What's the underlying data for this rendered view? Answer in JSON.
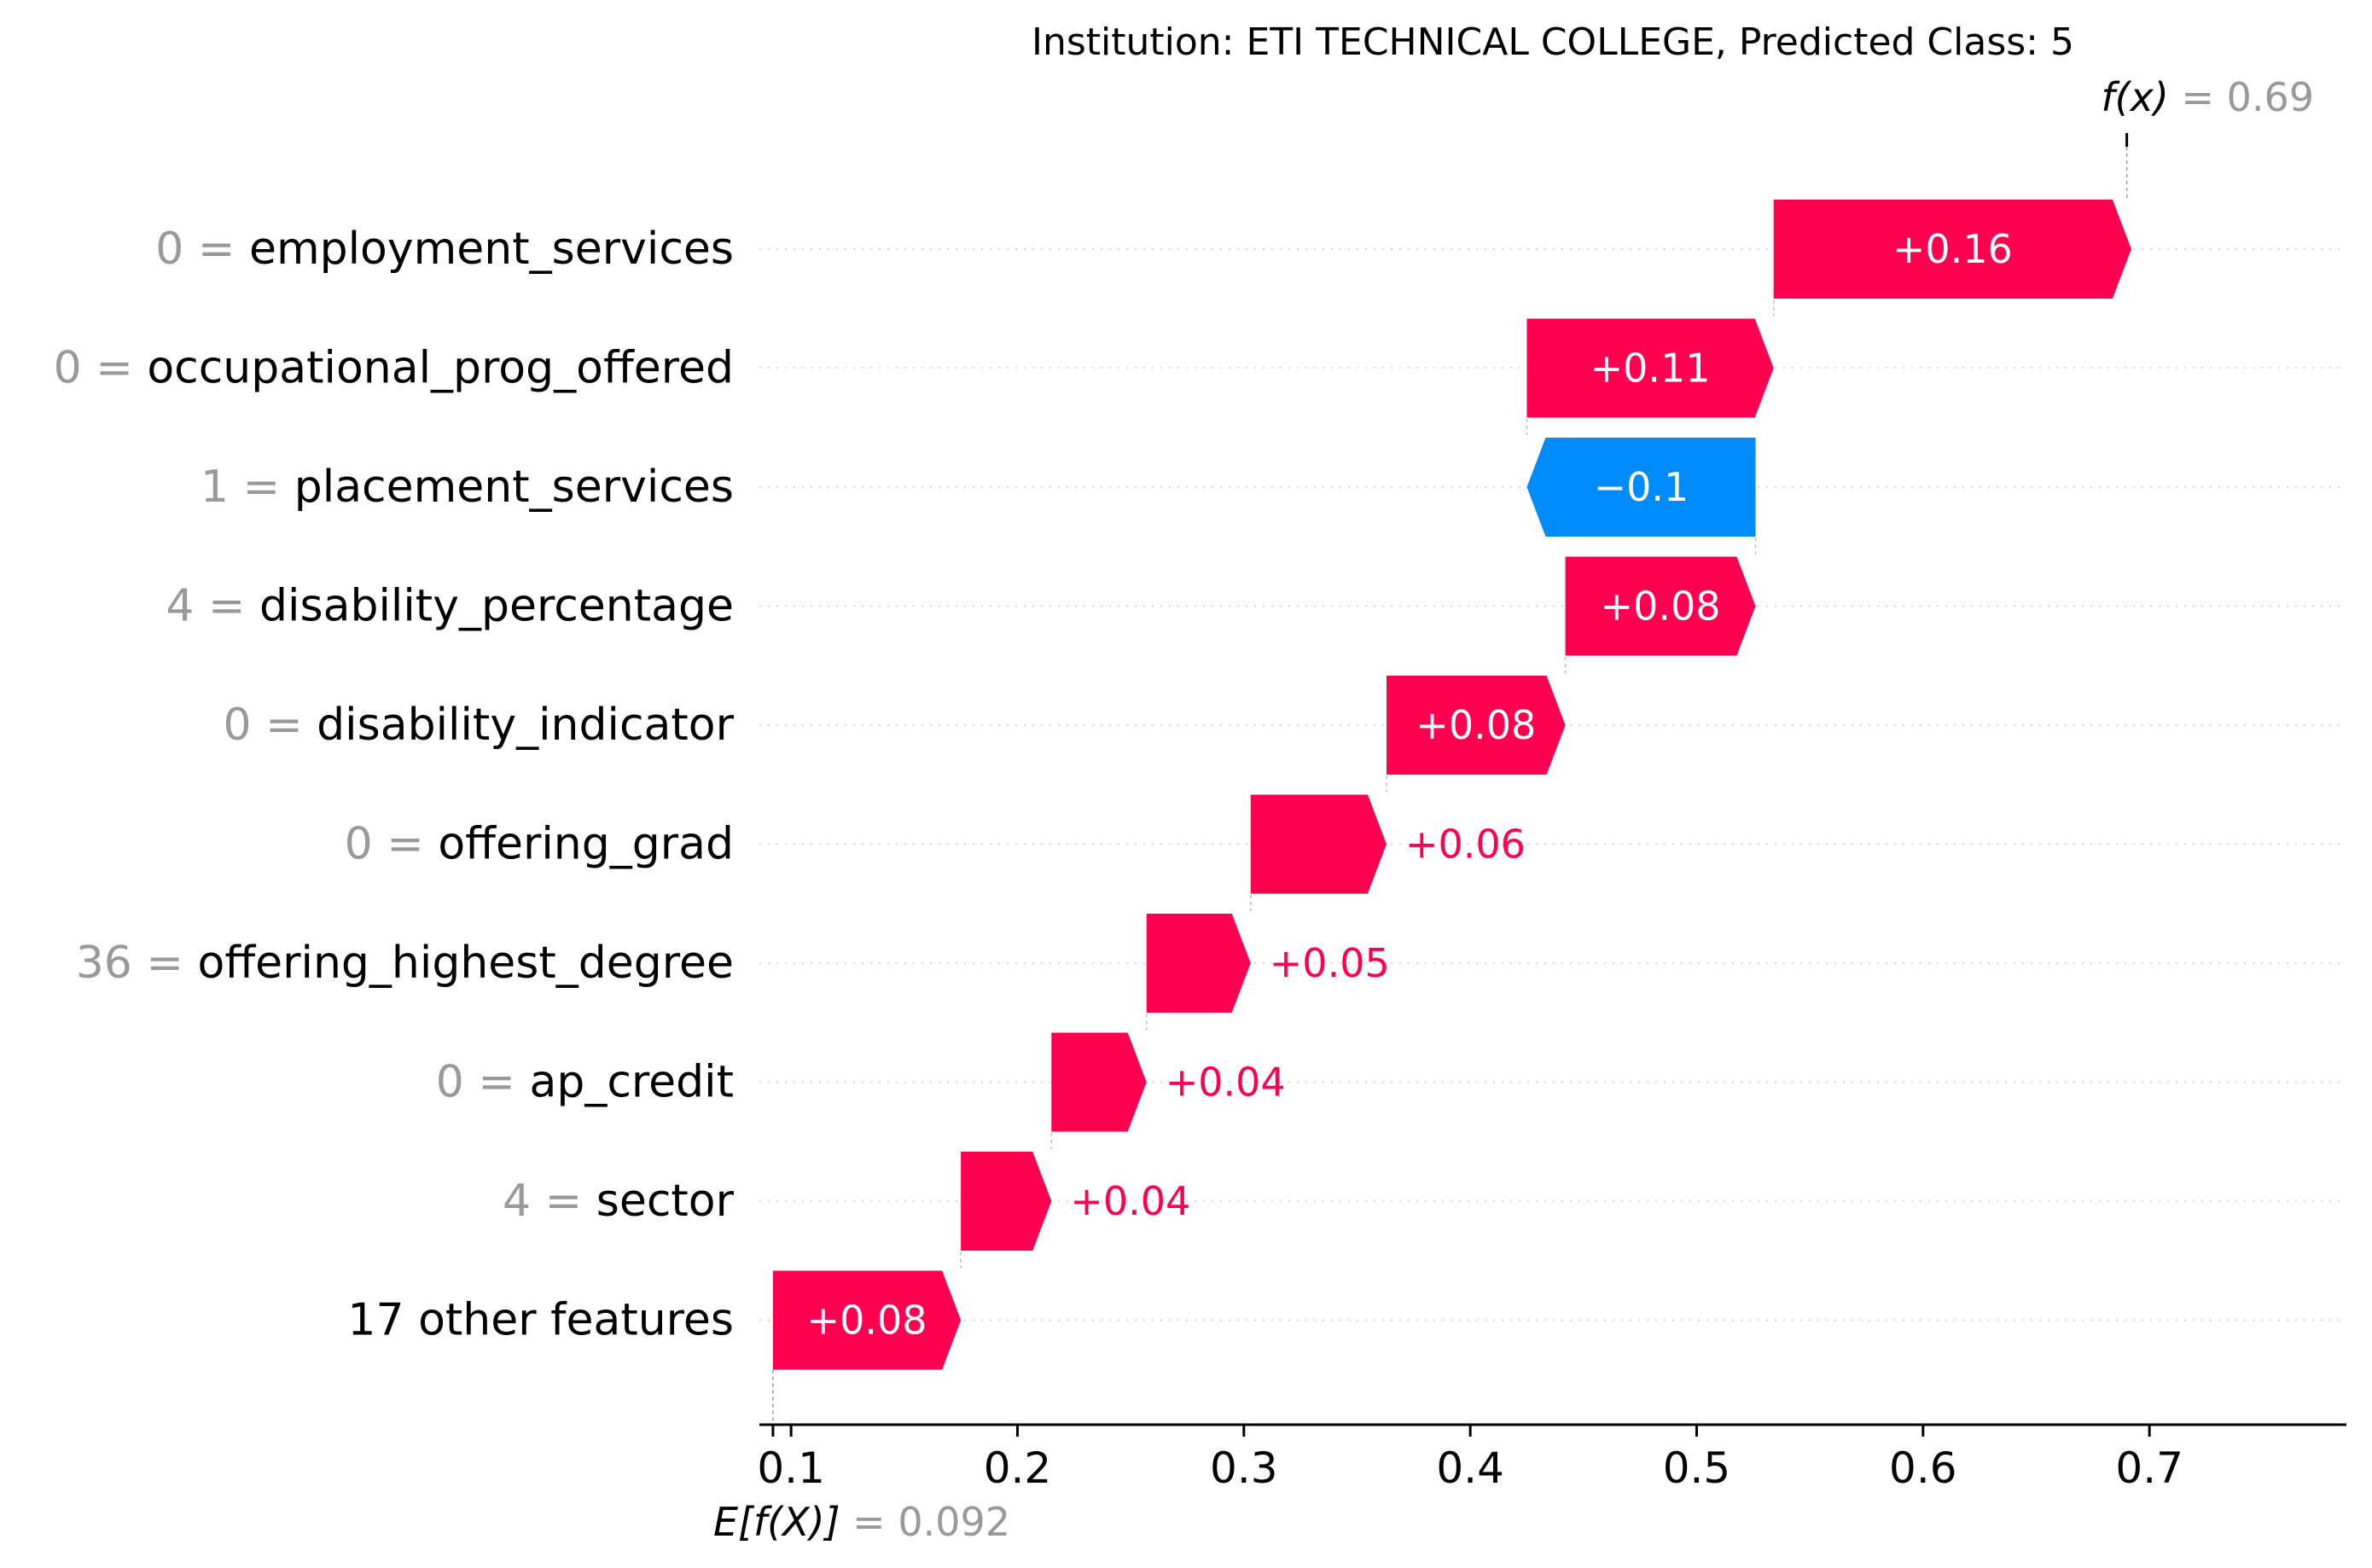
{
  "chart_data": {
    "type": "bar",
    "title": "Institution: ETI TECHNICAL COLLEGE, Predicted Class: 5",
    "fx_label": "f(x)",
    "fx_value": "0.69",
    "fx": 0.69,
    "efx_label": "E[f(X)]",
    "efx_value": "0.092",
    "base": 0.092,
    "xlim": [
      0.086,
      0.787
    ],
    "xticks": [
      "0.1",
      "0.2",
      "0.3",
      "0.4",
      "0.5",
      "0.6",
      "0.7"
    ],
    "xtick_values": [
      0.1,
      0.2,
      0.3,
      0.4,
      0.5,
      0.6,
      0.7
    ],
    "grid": "horizontal dotted",
    "features": [
      {
        "value": "0",
        "name": "employment_services",
        "contribution": 0.158,
        "label": "+0.16"
      },
      {
        "value": "0",
        "name": "occupational_prog_offered",
        "contribution": 0.109,
        "label": "+0.11"
      },
      {
        "value": "1",
        "name": "placement_services",
        "contribution": -0.101,
        "label": "−0.1"
      },
      {
        "value": "4",
        "name": "disability_percentage",
        "contribution": 0.084,
        "label": "+0.08"
      },
      {
        "value": "0",
        "name": "disability_indicator",
        "contribution": 0.079,
        "label": "+0.08"
      },
      {
        "value": "0",
        "name": "offering_grad",
        "contribution": 0.06,
        "label": "+0.06"
      },
      {
        "value": "36",
        "name": "offering_highest_degree",
        "contribution": 0.046,
        "label": "+0.05"
      },
      {
        "value": "0",
        "name": "ap_credit",
        "contribution": 0.042,
        "label": "+0.04"
      },
      {
        "value": "4",
        "name": "sector",
        "contribution": 0.04,
        "label": "+0.04"
      },
      {
        "value": "",
        "name": "17 other features",
        "contribution": 0.083,
        "label": "+0.08"
      }
    ],
    "colors": {
      "positive": "#ff0051",
      "negative": "#008bfb",
      "value_gray": "#999999",
      "text": "#000000"
    }
  }
}
